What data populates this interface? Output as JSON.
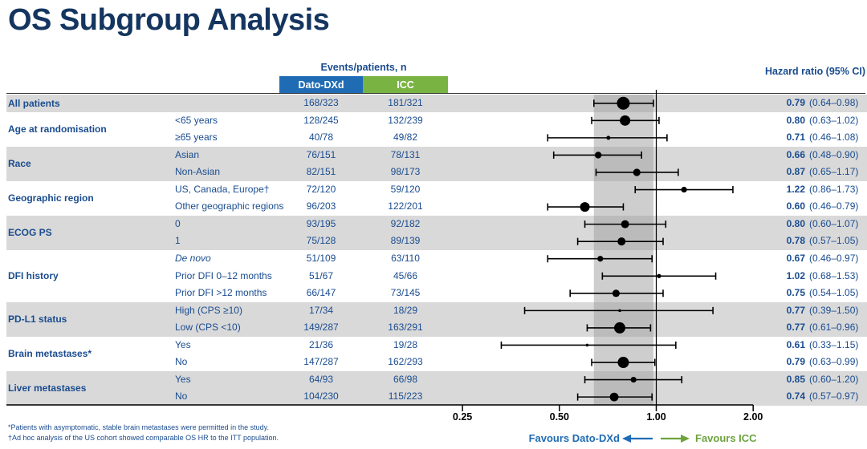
{
  "title": "OS Subgroup Analysis",
  "table": {
    "events_header": "Events/patients, n",
    "arm_headers": [
      {
        "label": "Dato-DXd",
        "color": "#1f6cb5"
      },
      {
        "label": "ICC",
        "color": "#79b342"
      }
    ],
    "hr_header": "Hazard ratio (95% CI)"
  },
  "footnotes": [
    "*Patients with asymptomatic, stable brain metastases were permitted in the study.",
    "†Ad hoc analysis of the US cohort showed comparable OS HR to the ITT population."
  ],
  "colors": {
    "navy_text": "#1a4c8f",
    "title_navy": "#14355f",
    "dato_blue": "#1f6cb5",
    "icc_green": "#79b342",
    "stripe_gray": "#d9d9d9",
    "band_gray": "#9e9e9e",
    "favours_green": "#6da33e"
  },
  "chart_data": {
    "type": "forest",
    "title": "OS Subgroup Analysis",
    "x_scale": "log2",
    "xlim": [
      0.25,
      2.0
    ],
    "reference_line": 1.0,
    "shaded_band": [
      0.64,
      0.98
    ],
    "axis_ticks": [
      {
        "value": 0.25,
        "label": "0.25"
      },
      {
        "value": 0.5,
        "label": "0.50"
      },
      {
        "value": 1.0,
        "label": "1.00"
      },
      {
        "value": 2.0,
        "label": "2.00"
      }
    ],
    "favours": {
      "left": "Favours Dato-DXd",
      "right": "Favours ICC"
    },
    "groups": [
      {
        "label": "All patients",
        "rows": [
          {
            "subgroup": "",
            "dato": "168/323",
            "icc": "181/321",
            "hr": 0.79,
            "ci": [
              0.64,
              0.98
            ],
            "hr_label": "0.79",
            "ci_label": "(0.64–0.98)",
            "marker": 8
          }
        ]
      },
      {
        "label": "Age at randomisation",
        "rows": [
          {
            "subgroup": "<65 years",
            "dato": "128/245",
            "icc": "132/239",
            "hr": 0.8,
            "ci": [
              0.63,
              1.02
            ],
            "hr_label": "0.80",
            "ci_label": "(0.63–1.02)",
            "marker": 6.5
          },
          {
            "subgroup": "≥65 years",
            "dato": "40/78",
            "icc": "49/82",
            "hr": 0.71,
            "ci": [
              0.46,
              1.08
            ],
            "hr_label": "0.71",
            "ci_label": "(0.46–1.08)",
            "marker": 2.5
          }
        ]
      },
      {
        "label": "Race",
        "rows": [
          {
            "subgroup": "Asian",
            "dato": "76/151",
            "icc": "78/131",
            "hr": 0.66,
            "ci": [
              0.48,
              0.9
            ],
            "hr_label": "0.66",
            "ci_label": "(0.48–0.90)",
            "marker": 4.2
          },
          {
            "subgroup": "Non-Asian",
            "dato": "82/151",
            "icc": "98/173",
            "hr": 0.87,
            "ci": [
              0.65,
              1.17
            ],
            "hr_label": "0.87",
            "ci_label": "(0.65–1.17)",
            "marker": 4.6
          }
        ]
      },
      {
        "label": "Geographic region",
        "rows": [
          {
            "subgroup": "US, Canada, Europe†",
            "dato": "72/120",
            "icc": "59/120",
            "hr": 1.22,
            "ci": [
              0.86,
              1.73
            ],
            "hr_label": "1.22",
            "ci_label": "(0.86–1.73)",
            "marker": 3.6
          },
          {
            "subgroup": "Other geographic regions",
            "dato": "96/203",
            "icc": "122/201",
            "hr": 0.6,
            "ci": [
              0.46,
              0.79
            ],
            "hr_label": "0.60",
            "ci_label": "(0.46–0.79)",
            "marker": 6
          }
        ]
      },
      {
        "label": "ECOG PS",
        "rows": [
          {
            "subgroup": "0",
            "dato": "93/195",
            "icc": "92/182",
            "hr": 0.8,
            "ci": [
              0.6,
              1.07
            ],
            "hr_label": "0.80",
            "ci_label": "(0.60–1.07)",
            "marker": 5
          },
          {
            "subgroup": "1",
            "dato": "75/128",
            "icc": "89/139",
            "hr": 0.78,
            "ci": [
              0.57,
              1.05
            ],
            "hr_label": "0.78",
            "ci_label": "(0.57–1.05)",
            "marker": 5
          }
        ]
      },
      {
        "label": "DFI history",
        "rows": [
          {
            "subgroup": "De novo",
            "italic": true,
            "dato": "51/109",
            "icc": "63/110",
            "hr": 0.67,
            "ci": [
              0.46,
              0.97
            ],
            "hr_label": "0.67",
            "ci_label": "(0.46–0.97)",
            "marker": 3.6
          },
          {
            "subgroup": "Prior DFI 0–12 months",
            "dato": "51/67",
            "icc": "45/66",
            "hr": 1.02,
            "ci": [
              0.68,
              1.53
            ],
            "hr_label": "1.02",
            "ci_label": "(0.68–1.53)",
            "marker": 2.6
          },
          {
            "subgroup": "Prior DFI >12 months",
            "dato": "66/147",
            "icc": "73/145",
            "hr": 0.75,
            "ci": [
              0.54,
              1.05
            ],
            "hr_label": "0.75",
            "ci_label": "(0.54–1.05)",
            "marker": 4.6
          }
        ]
      },
      {
        "label": "PD-L1 status",
        "rows": [
          {
            "subgroup": "High (CPS ≥10)",
            "dato": "17/34",
            "icc": "18/29",
            "hr": 0.77,
            "ci": [
              0.39,
              1.5
            ],
            "hr_label": "0.77",
            "ci_label": "(0.39–1.50)",
            "marker": 1.8
          },
          {
            "subgroup": "Low (CPS <10)",
            "dato": "149/287",
            "icc": "163/291",
            "hr": 0.77,
            "ci": [
              0.61,
              0.96
            ],
            "hr_label": "0.77",
            "ci_label": "(0.61–0.96)",
            "marker": 7
          }
        ]
      },
      {
        "label": "Brain metastases*",
        "rows": [
          {
            "subgroup": "Yes",
            "dato": "21/36",
            "icc": "19/28",
            "hr": 0.61,
            "ci": [
              0.33,
              1.15
            ],
            "hr_label": "0.61",
            "ci_label": "(0.33–1.15)",
            "marker": 1.8
          },
          {
            "subgroup": "No",
            "dato": "147/287",
            "icc": "162/293",
            "hr": 0.79,
            "ci": [
              0.63,
              0.99
            ],
            "hr_label": "0.79",
            "ci_label": "(0.63–0.99)",
            "marker": 7
          }
        ]
      },
      {
        "label": "Liver metastases",
        "rows": [
          {
            "subgroup": "Yes",
            "dato": "64/93",
            "icc": "66/98",
            "hr": 0.85,
            "ci": [
              0.6,
              1.2
            ],
            "hr_label": "0.85",
            "ci_label": "(0.60–1.20)",
            "marker": 3.6
          },
          {
            "subgroup": "No",
            "dato": "104/230",
            "icc": "115/223",
            "hr": 0.74,
            "ci": [
              0.57,
              0.97
            ],
            "hr_label": "0.74",
            "ci_label": "(0.57–0.97)",
            "marker": 5.4
          }
        ]
      }
    ]
  }
}
